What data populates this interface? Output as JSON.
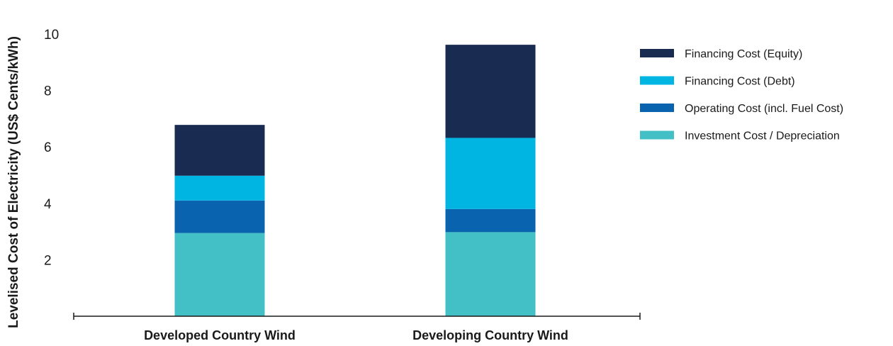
{
  "chart_data": {
    "type": "bar",
    "stacked": true,
    "title": "",
    "xlabel": "",
    "ylabel": "Levelised Cost of Electricity (US$ Cents/kWh)",
    "ylim": [
      0,
      10
    ],
    "yticks": [
      2,
      4,
      6,
      8,
      10
    ],
    "grid": false,
    "legend_position": "right",
    "categories": [
      "Developed Country Wind",
      "Developing Country Wind"
    ],
    "series": [
      {
        "name": "Investment Cost / Depreciation",
        "color": "#42C0C5",
        "values": [
          2.95,
          2.98
        ]
      },
      {
        "name": "Operating Cost (incl. Fuel Cost)",
        "color": "#0A63AE",
        "values": [
          1.15,
          0.82
        ]
      },
      {
        "name": "Financing Cost (Debt)",
        "color": "#00B5E2",
        "values": [
          0.88,
          2.52
        ]
      },
      {
        "name": "Financing Cost (Equity)",
        "color": "#1A2B52",
        "values": [
          1.8,
          3.3
        ]
      }
    ]
  }
}
